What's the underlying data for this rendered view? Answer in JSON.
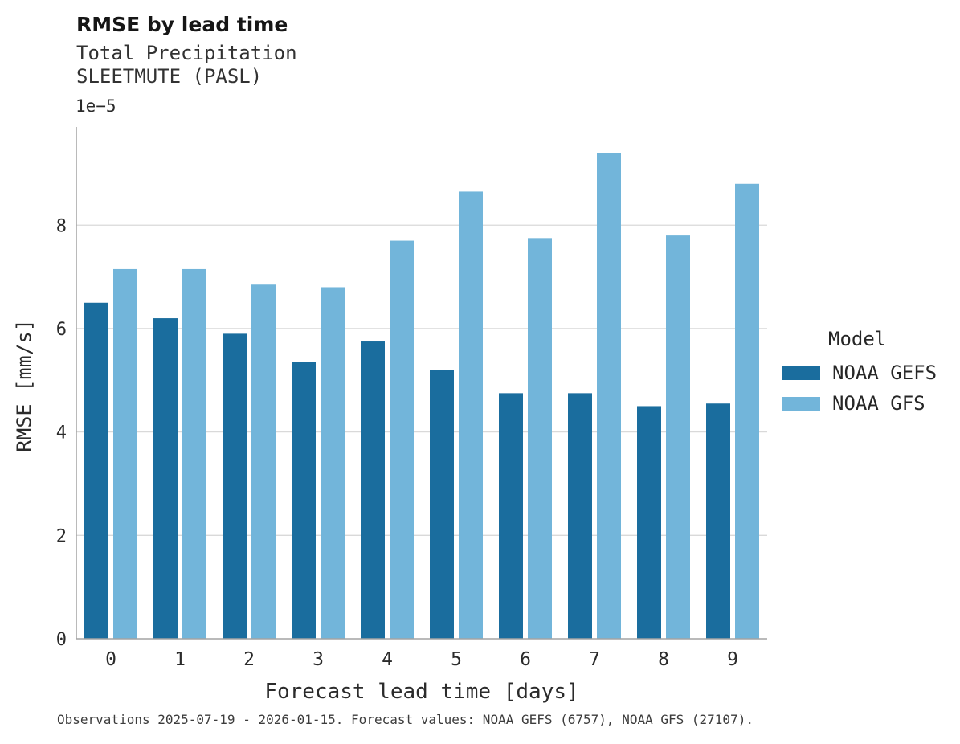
{
  "header": {
    "title": "RMSE by lead time",
    "subtitle_line1": "Total Precipitation",
    "subtitle_line2": "SLEETMUTE (PASL)"
  },
  "axes": {
    "y_offset_label": "1e−5",
    "y_label": "RMSE [mm/s]",
    "x_label": "Forecast lead time [days]"
  },
  "legend": {
    "title": "Model",
    "entries": [
      {
        "label": "NOAA GEFS",
        "color": "#1a6d9e"
      },
      {
        "label": "NOAA GFS",
        "color": "#72b5da"
      }
    ]
  },
  "footer": {
    "caption": "Observations 2025-07-19 - 2026-01-15. Forecast values: NOAA GEFS (6757), NOAA GFS (27107)."
  },
  "colors": {
    "grid": "#d9d9d9",
    "spine": "#a3a3a3",
    "tick_text": "#2b2b2b"
  },
  "chart_data": {
    "type": "bar",
    "title": "RMSE by lead time",
    "subtitle": "Total Precipitation SLEETMUTE (PASL)",
    "xlabel": "Forecast lead time [days]",
    "ylabel": "RMSE [mm/s]",
    "y_scale_factor": "1e-5",
    "categories": [
      "0",
      "1",
      "2",
      "3",
      "4",
      "5",
      "6",
      "7",
      "8",
      "9"
    ],
    "series": [
      {
        "name": "NOAA GEFS",
        "color": "#1a6d9e",
        "values": [
          6.5,
          6.2,
          5.9,
          5.35,
          5.75,
          5.2,
          4.75,
          4.75,
          4.5,
          4.55
        ]
      },
      {
        "name": "NOAA GFS",
        "color": "#72b5da",
        "values": [
          7.15,
          7.15,
          6.85,
          6.8,
          7.7,
          8.65,
          7.75,
          9.4,
          7.8,
          8.8
        ]
      }
    ],
    "ylim": [
      0,
      9.9
    ],
    "yticks": [
      0,
      2,
      4,
      6,
      8
    ],
    "grid": true,
    "legend_position": "right"
  }
}
